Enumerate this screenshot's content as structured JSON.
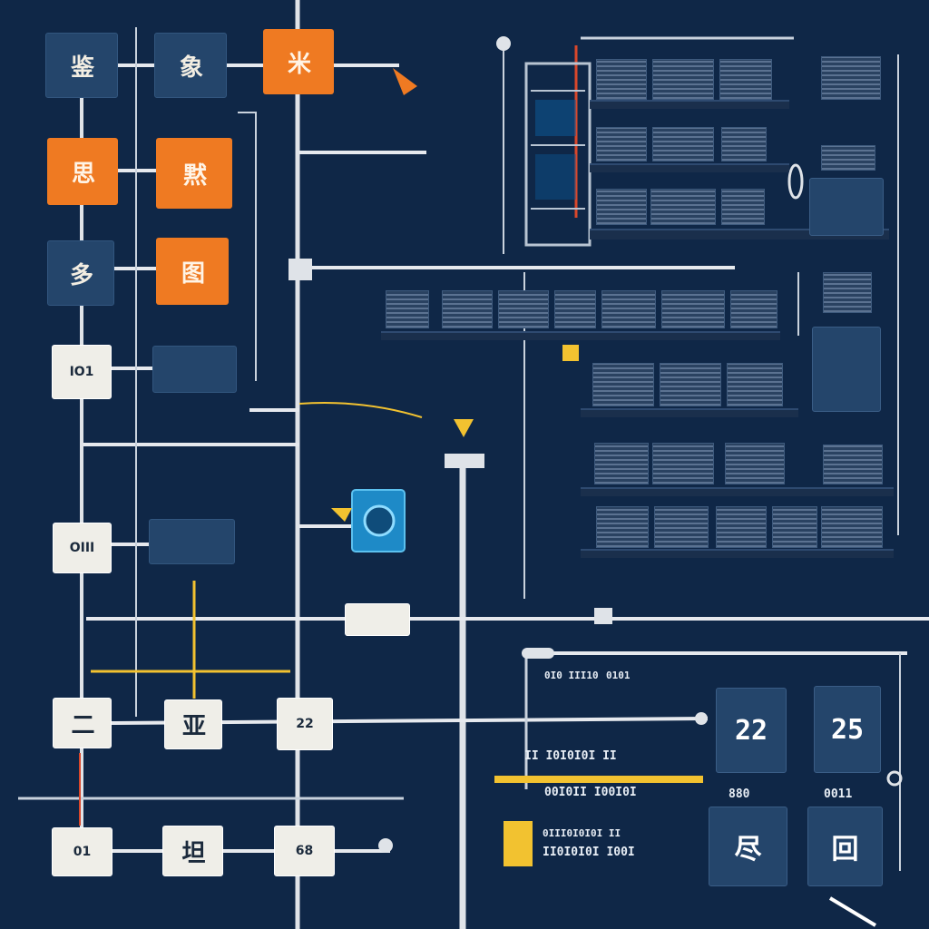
{
  "colors": {
    "background": "#0f2747",
    "node_navy": "#24456b",
    "node_orange": "#ef7a22",
    "node_white": "#efeee8",
    "line_white": "#dfe3e8",
    "accent_yellow": "#f2c230",
    "accent_red": "#d9472b",
    "accent_cyan": "#1e8ac7"
  },
  "nodes": {
    "n1": "鉴",
    "n2": "象",
    "n3": "米",
    "n4": "思",
    "n5": "黙",
    "n6": "多",
    "n7": "图",
    "w1": "IO1",
    "w2": "OIII",
    "w3": "二",
    "w4": "亚",
    "w5": "22",
    "w6": "01",
    "w7": "坦",
    "w8": "68"
  },
  "panels": {
    "p1": "22",
    "p2": "25",
    "p3": "尽",
    "p4": "回"
  },
  "labels": {
    "l1": "0101",
    "l2": "0011",
    "l3": "0I0 III10",
    "l4": "II I0I0I0I II",
    "l5": "00I0II I00I0I",
    "l6": "0III0I0I0I II",
    "l7": "II0I0I0I I00I",
    "l8": "880"
  }
}
